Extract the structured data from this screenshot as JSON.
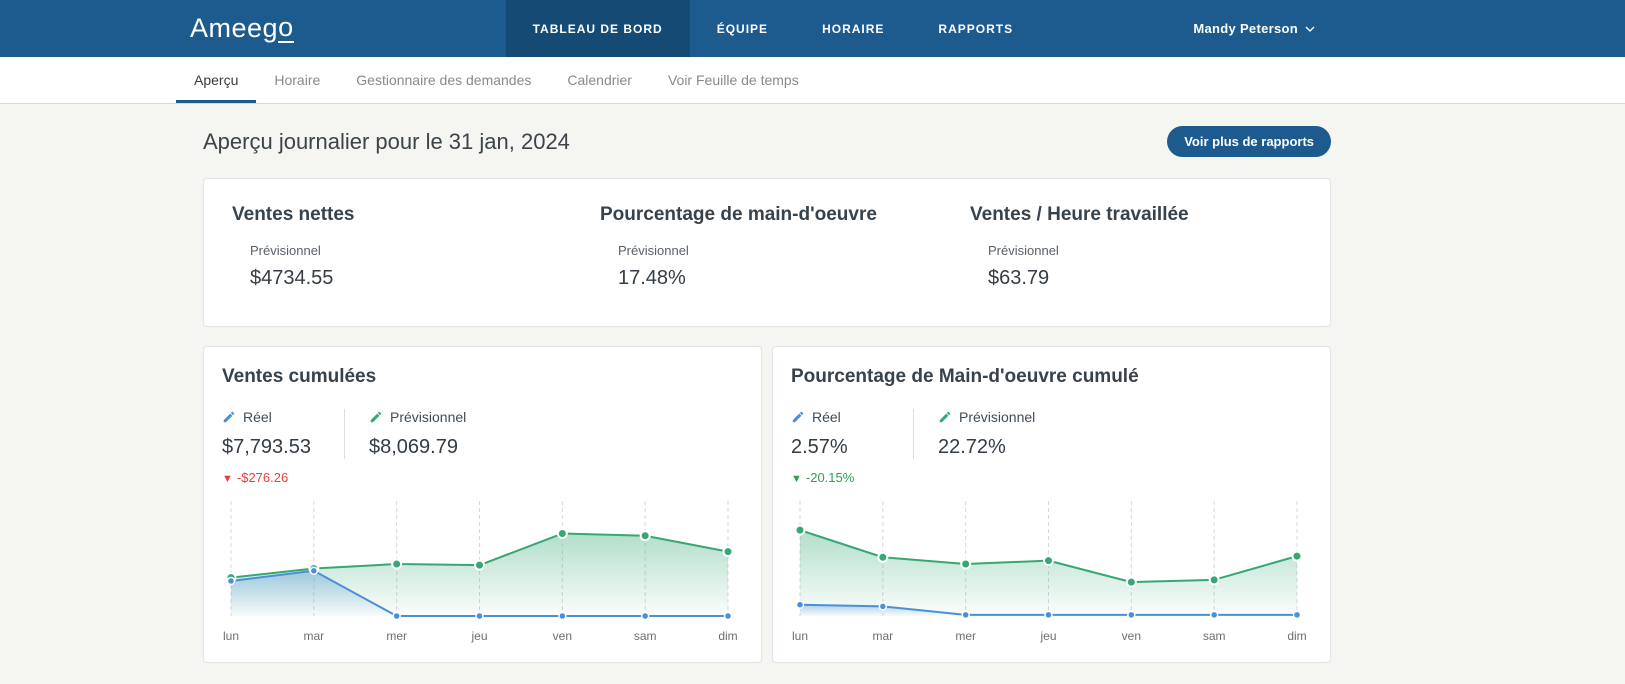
{
  "navbar": {
    "logo_main": "Ameeg",
    "logo_last": "o",
    "items": [
      {
        "label": "TABLEAU DE BORD",
        "active": true
      },
      {
        "label": "ÉQUIPE",
        "active": false
      },
      {
        "label": "HORAIRE",
        "active": false
      },
      {
        "label": "RAPPORTS",
        "active": false
      }
    ],
    "user": {
      "name": "Mandy Peterson"
    }
  },
  "subnav": {
    "tabs": [
      {
        "label": "Aperçu",
        "active": true
      },
      {
        "label": "Horaire",
        "active": false
      },
      {
        "label": "Gestionnaire des demandes",
        "active": false
      },
      {
        "label": "Calendrier",
        "active": false
      },
      {
        "label": "Voir Feuille de temps",
        "active": false
      }
    ]
  },
  "page": {
    "title": "Aperçu journalier pour le 31 jan, 2024",
    "reports_button": "Voir plus de rapports"
  },
  "summary": {
    "stats": [
      {
        "title": "Ventes nettes",
        "label": "Prévisionnel",
        "value": "$4734.55"
      },
      {
        "title": "Pourcentage de main-d'oeuvre",
        "label": "Prévisionnel",
        "value": "17.48%"
      },
      {
        "title": "Ventes / Heure travaillée",
        "label": "Prévisionnel",
        "value": "$63.79"
      }
    ]
  },
  "colors": {
    "navbar": "#1d5a8e",
    "navbar_active": "#154a74",
    "accent_blue": "#4a90d8",
    "accent_green": "#35a873",
    "delta_red": "#e8403a",
    "delta_green": "#2f9e57"
  },
  "chart_data": [
    {
      "type": "area",
      "title": "Ventes cumulées",
      "x": [
        "lun",
        "mar",
        "mer",
        "jeu",
        "ven",
        "sam",
        "dim"
      ],
      "ylim": [
        0,
        1
      ],
      "units": "relative height (no y-axis labels shown)",
      "grid": "vertical dashed",
      "legend_position": "top",
      "series": [
        {
          "name": "Réel",
          "display_value": "$7,793.53",
          "color": "#4a90d8",
          "values": [
            0.31,
            0.4,
            0,
            0,
            0,
            0,
            0
          ]
        },
        {
          "name": "Prévisionnel",
          "display_value": "$8,069.79",
          "color": "#35a873",
          "values": [
            0.34,
            0.42,
            0.46,
            0.45,
            0.73,
            0.71,
            0.57
          ]
        }
      ],
      "delta": {
        "arrow": "▼",
        "label": "-$276.26",
        "color": "#e8403a"
      }
    },
    {
      "type": "area",
      "title": "Pourcentage de Main-d'oeuvre cumulé",
      "x": [
        "lun",
        "mar",
        "mer",
        "jeu",
        "ven",
        "sam",
        "dim"
      ],
      "ylim": [
        0,
        1
      ],
      "units": "relative height (no y-axis labels shown)",
      "grid": "vertical dashed",
      "legend_position": "top",
      "series": [
        {
          "name": "Réel",
          "display_value": "2.57%",
          "color": "#4a90d8",
          "values": [
            0.1,
            0.085,
            0.01,
            0.01,
            0.01,
            0.01,
            0.01
          ]
        },
        {
          "name": "Prévisionnel",
          "display_value": "22.72%",
          "color": "#35a873",
          "values": [
            0.76,
            0.52,
            0.46,
            0.49,
            0.3,
            0.32,
            0.53
          ]
        }
      ],
      "delta": {
        "arrow": "▼",
        "label": "-20.15%",
        "color": "#2f9e57"
      }
    }
  ]
}
